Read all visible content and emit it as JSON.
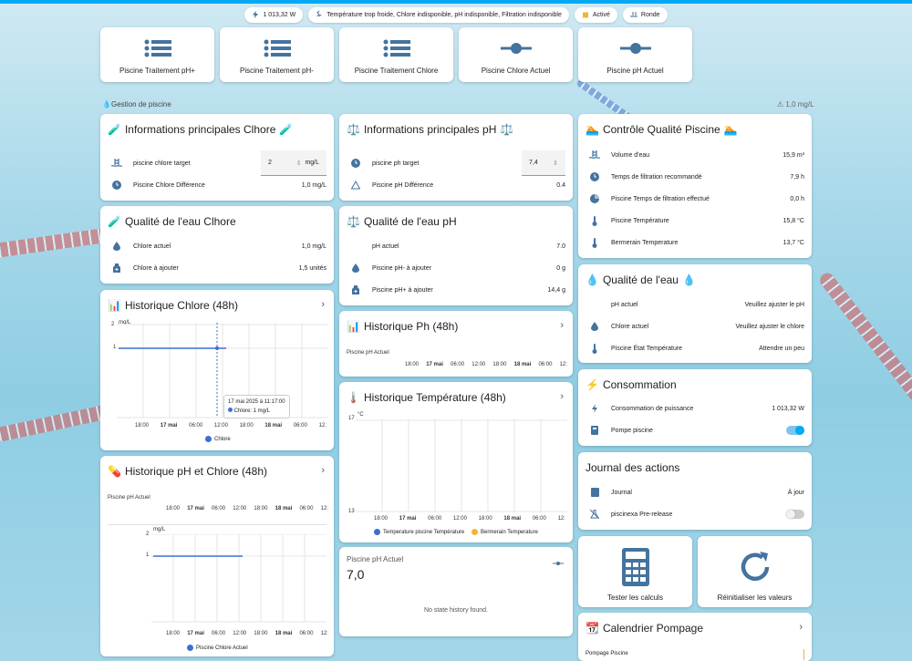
{
  "chips": [
    {
      "icon": "flash-icon",
      "text": "1 013,32 W"
    },
    {
      "icon": "thermometer-icon",
      "text": "Température trop froide, Chlore indisponible, pH indisponible, Filtration indisponible"
    },
    {
      "icon": "calendar-icon",
      "text": "Activé"
    },
    {
      "icon": "pool-icon",
      "text": "Ronde"
    }
  ],
  "buttons": [
    "Piscine Traitement pH+",
    "Piscine Traitement pH-",
    "Piscine Traitement Chlore",
    "Piscine Chlore Actuel",
    "Piscine pH Actuel"
  ],
  "section": {
    "title": "Gestion de piscine",
    "right": "1,0 mg/L"
  },
  "chlore_info": {
    "title": "Informations principales Clhore",
    "target_label": "piscine chlore target",
    "target_value": "2",
    "target_unit": "mg/L",
    "diff_label": "Piscine Chlore Différence",
    "diff_value": "1,0 mg/L"
  },
  "ph_info": {
    "title": "Informations principales pH",
    "target_label": "piscine ph target",
    "target_value": "7,4",
    "diff_label": "Piscine pH Différence",
    "diff_value": "0.4"
  },
  "quality_control": {
    "title": "Contrôle Qualité Piscine",
    "rows": [
      {
        "icon": "pool-icon",
        "label": "Volume d'eau",
        "value": "15,9 m³"
      },
      {
        "icon": "clock-icon",
        "label": "Temps de filtration recommandé",
        "value": "7,9 h"
      },
      {
        "icon": "timer-icon",
        "label": "Piscine Temps de filtration effectué",
        "value": "0,0 h"
      },
      {
        "icon": "thermometer-icon",
        "label": "Piscine Température",
        "value": "15,8 °C"
      },
      {
        "icon": "thermometer-icon",
        "label": "Bermerain Temperature",
        "value": "13,7 °C"
      }
    ]
  },
  "water_chlore": {
    "title": "Qualité de l'eau Clhore",
    "rows": [
      {
        "icon": "water-icon",
        "label": "Chlore actuel",
        "value": "1,0 mg/L"
      },
      {
        "icon": "bottle-icon",
        "label": "Chlore à ajouter",
        "value": "1,5 unités"
      }
    ]
  },
  "water_ph": {
    "title": "Qualité de l'eau pH",
    "rows": [
      {
        "icon": "",
        "label": "pH actuel",
        "value": "7.0"
      },
      {
        "icon": "water-icon",
        "label": "Piscine pH- à ajouter",
        "value": "0 g"
      },
      {
        "icon": "bottle-icon",
        "label": "Piscine pH+ à ajouter",
        "value": "14,4 g"
      }
    ]
  },
  "water_quality": {
    "title": "Qualité de l'eau",
    "rows": [
      {
        "icon": "",
        "label": "pH actuel",
        "value": "Veuillez ajuster le pH"
      },
      {
        "icon": "water-icon",
        "label": "Chlore actuel",
        "value": "Veuillez ajuster le chlore"
      },
      {
        "icon": "thermometer-icon",
        "label": "Piscine État Température",
        "value": "Attendre un peu"
      }
    ]
  },
  "consumption": {
    "title": "Consommation",
    "rows": [
      {
        "icon": "flash-icon",
        "label": "Consommation de puissance",
        "value": "1 013,32 W"
      },
      {
        "icon": "pump-icon",
        "label": "Pompe piscine",
        "value": ""
      }
    ]
  },
  "journal": {
    "title": "Journal des actions",
    "rows": [
      {
        "icon": "book-icon",
        "label": "Journal",
        "value": "À jour"
      },
      {
        "icon": "flask-icon",
        "label": "piscinexa Pre-release",
        "value": ""
      }
    ]
  },
  "actions": [
    "Tester les calculs",
    "Réinitialiser les valeurs"
  ],
  "calendar": {
    "title": "Calendrier Pompage",
    "item": "Pompage Piscine"
  },
  "hist_chlore": {
    "title": "Historique Chlore (48h)",
    "unit": "mg/L",
    "y_ticks": [
      "2",
      "1"
    ],
    "x_ticks": [
      "18:00",
      "17 mai",
      "06:00",
      "12:00",
      "18:00",
      "18 mai",
      "06:00",
      "12:"
    ],
    "tooltip_time": "17 mai 2025 à 11:17:00",
    "tooltip_value": "Chlore: 1 mg/L",
    "legend": "Chlore"
  },
  "hist_ph_chlore": {
    "title": "Historique pH et Chlore (48h)",
    "sub": "Piscine pH Actuel",
    "unit": "mg/L",
    "y_ticks": [
      "2",
      "1"
    ],
    "x_ticks": [
      "18:00",
      "17 mai",
      "06:00",
      "12:00",
      "18:00",
      "18 mai",
      "06:00",
      "12:"
    ],
    "legend": "Piscine Chlore Actuel"
  },
  "hist_ph": {
    "title": "Historique Ph (48h)",
    "sub": "Piscine pH Actuel",
    "x_ticks": [
      "18:00",
      "17 mai",
      "06:00",
      "12:00",
      "18:00",
      "18 mai",
      "06:00",
      "12:"
    ]
  },
  "hist_temp": {
    "title": "Historique Température (48h)",
    "unit": "°C",
    "y_ticks": [
      "17",
      "13"
    ],
    "x_ticks": [
      "18:00",
      "17 mai",
      "06:00",
      "12:00",
      "18:00",
      "18 mai",
      "06:00",
      "12:"
    ],
    "legend": [
      "Temperature piscine Température",
      "Bermerain Temperature"
    ]
  },
  "ph_current": {
    "label": "Piscine pH Actuel",
    "value": "7,0",
    "empty": "No state history found."
  },
  "chart_data": [
    {
      "type": "line",
      "title": "Historique Chlore (48h)",
      "ylabel": "mg/L",
      "ylim": [
        0,
        2
      ],
      "x": [
        "17 mai 02:00",
        "17 mai 12:30"
      ],
      "series": [
        {
          "name": "Chlore",
          "values": [
            1,
            1
          ]
        }
      ]
    },
    {
      "type": "line",
      "title": "Historique pH et Chlore (48h)",
      "ylabel": "mg/L",
      "ylim": [
        0,
        2
      ],
      "x": [
        "17 mai 00:00",
        "17 mai 13:00"
      ],
      "series": [
        {
          "name": "Piscine Chlore Actuel",
          "values": [
            1,
            1
          ]
        }
      ]
    }
  ],
  "colors": {
    "accent": "#03a9f4",
    "icon": "#44739e",
    "blue": "#3b6fd4",
    "orange": "#f5b335"
  }
}
